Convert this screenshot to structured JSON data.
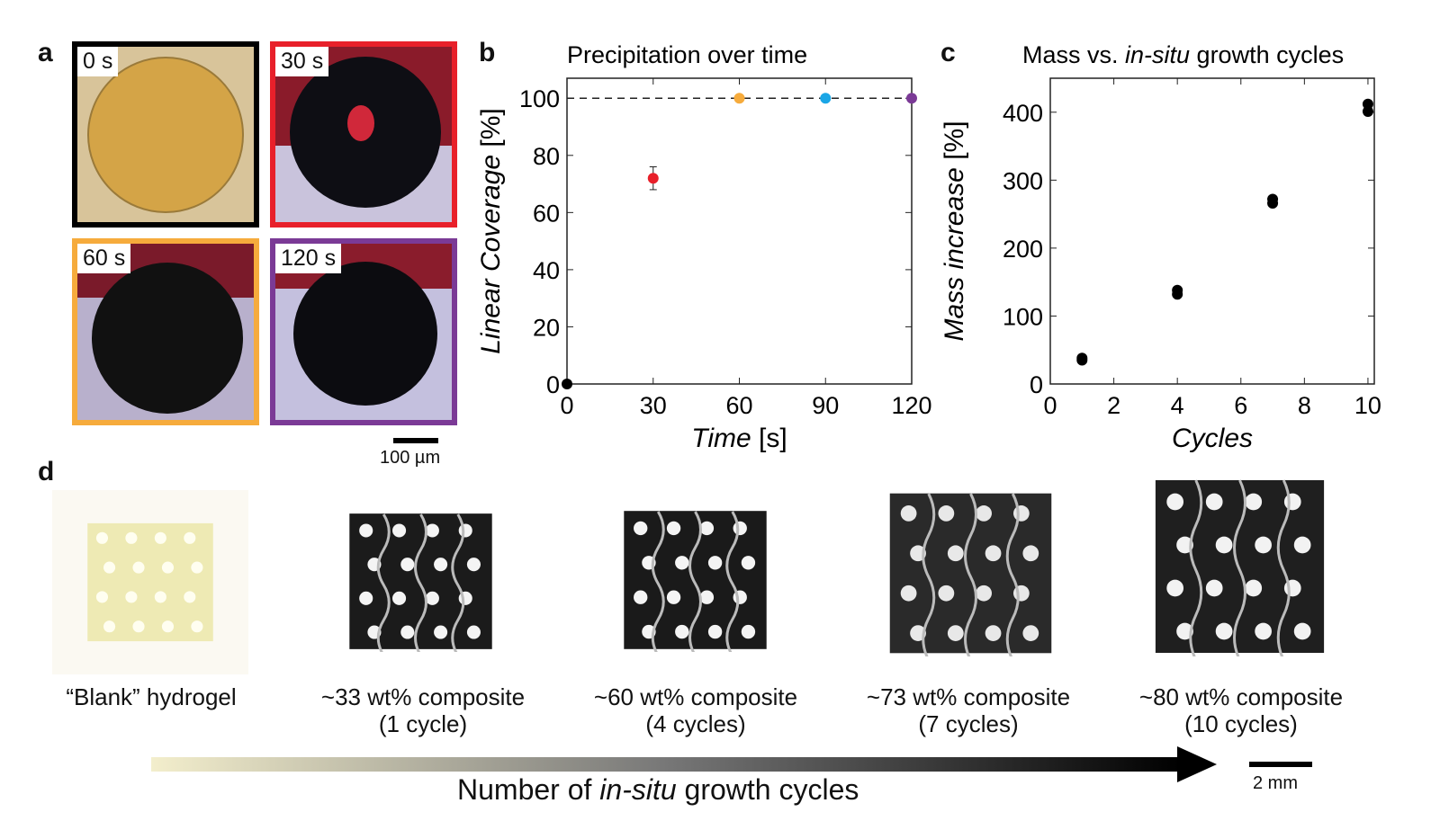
{
  "panel_a": {
    "letter": "a",
    "images": [
      {
        "label": "0 s",
        "border": "#000000"
      },
      {
        "label": "30 s",
        "border": "#e8202a"
      },
      {
        "label": "60 s",
        "border": "#f6ab3c"
      },
      {
        "label": "120 s",
        "border": "#7b3a96"
      }
    ],
    "scale_bar": "100 µm"
  },
  "panel_b": {
    "letter": "b"
  },
  "panel_c": {
    "letter": "c"
  },
  "panel_d": {
    "letter": "d",
    "samples": [
      {
        "line1": "“Blank” hydrogel",
        "line2": ""
      },
      {
        "line1": "~33 wt% composite",
        "line2": "(1 cycle)"
      },
      {
        "line1": "~60 wt% composite",
        "line2": "(4 cycles)"
      },
      {
        "line1": "~73 wt% composite",
        "line2": "(7 cycles)"
      },
      {
        "line1": "~80 wt% composite",
        "line2": "(10 cycles)"
      }
    ],
    "arrow_label_pre": "Number of ",
    "arrow_label_italic": "in-situ",
    "arrow_label_post": " growth cycles",
    "scale_bar": "2 mm"
  },
  "chart_data": [
    {
      "type": "scatter",
      "title": "Precipitation over time",
      "xlabel_italic": "Time",
      "xlabel_unit": " [s]",
      "ylabel_italic": "Linear Coverage",
      "ylabel_unit": " [%]",
      "xlim": [
        0,
        120
      ],
      "ylim": [
        0,
        107
      ],
      "xticks": [
        0,
        30,
        60,
        90,
        120
      ],
      "yticks": [
        0,
        20,
        40,
        60,
        80,
        100
      ],
      "reference_line": {
        "y": 100,
        "style": "dashed"
      },
      "points": [
        {
          "x": 0,
          "y": 0,
          "color": "#000000"
        },
        {
          "x": 30,
          "y": 72,
          "err": 4,
          "color": "#e8202a"
        },
        {
          "x": 60,
          "y": 100,
          "color": "#f6ab3c"
        },
        {
          "x": 90,
          "y": 100,
          "color": "#1aa6e6"
        },
        {
          "x": 120,
          "y": 100,
          "color": "#7b3a96"
        }
      ],
      "grid": false
    },
    {
      "type": "scatter",
      "title_pre": "Mass vs. ",
      "title_italic": "in-situ",
      "title_post": " growth cycles",
      "xlabel_italic": "Cycles",
      "ylabel_pre": "Mass ",
      "ylabel_italic": "increase",
      "ylabel_unit": " [%]",
      "xlim": [
        0,
        10.2
      ],
      "ylim": [
        0,
        450
      ],
      "xticks": [
        0,
        2,
        4,
        6,
        8,
        10
      ],
      "yticks": [
        0,
        100,
        200,
        300,
        400
      ],
      "points": [
        {
          "x": 1,
          "y": 35
        },
        {
          "x": 1,
          "y": 38
        },
        {
          "x": 4,
          "y": 132
        },
        {
          "x": 4,
          "y": 138
        },
        {
          "x": 7,
          "y": 266
        },
        {
          "x": 7,
          "y": 272
        },
        {
          "x": 10,
          "y": 401
        },
        {
          "x": 10,
          "y": 412
        }
      ],
      "color": "#000000",
      "grid": false
    }
  ]
}
